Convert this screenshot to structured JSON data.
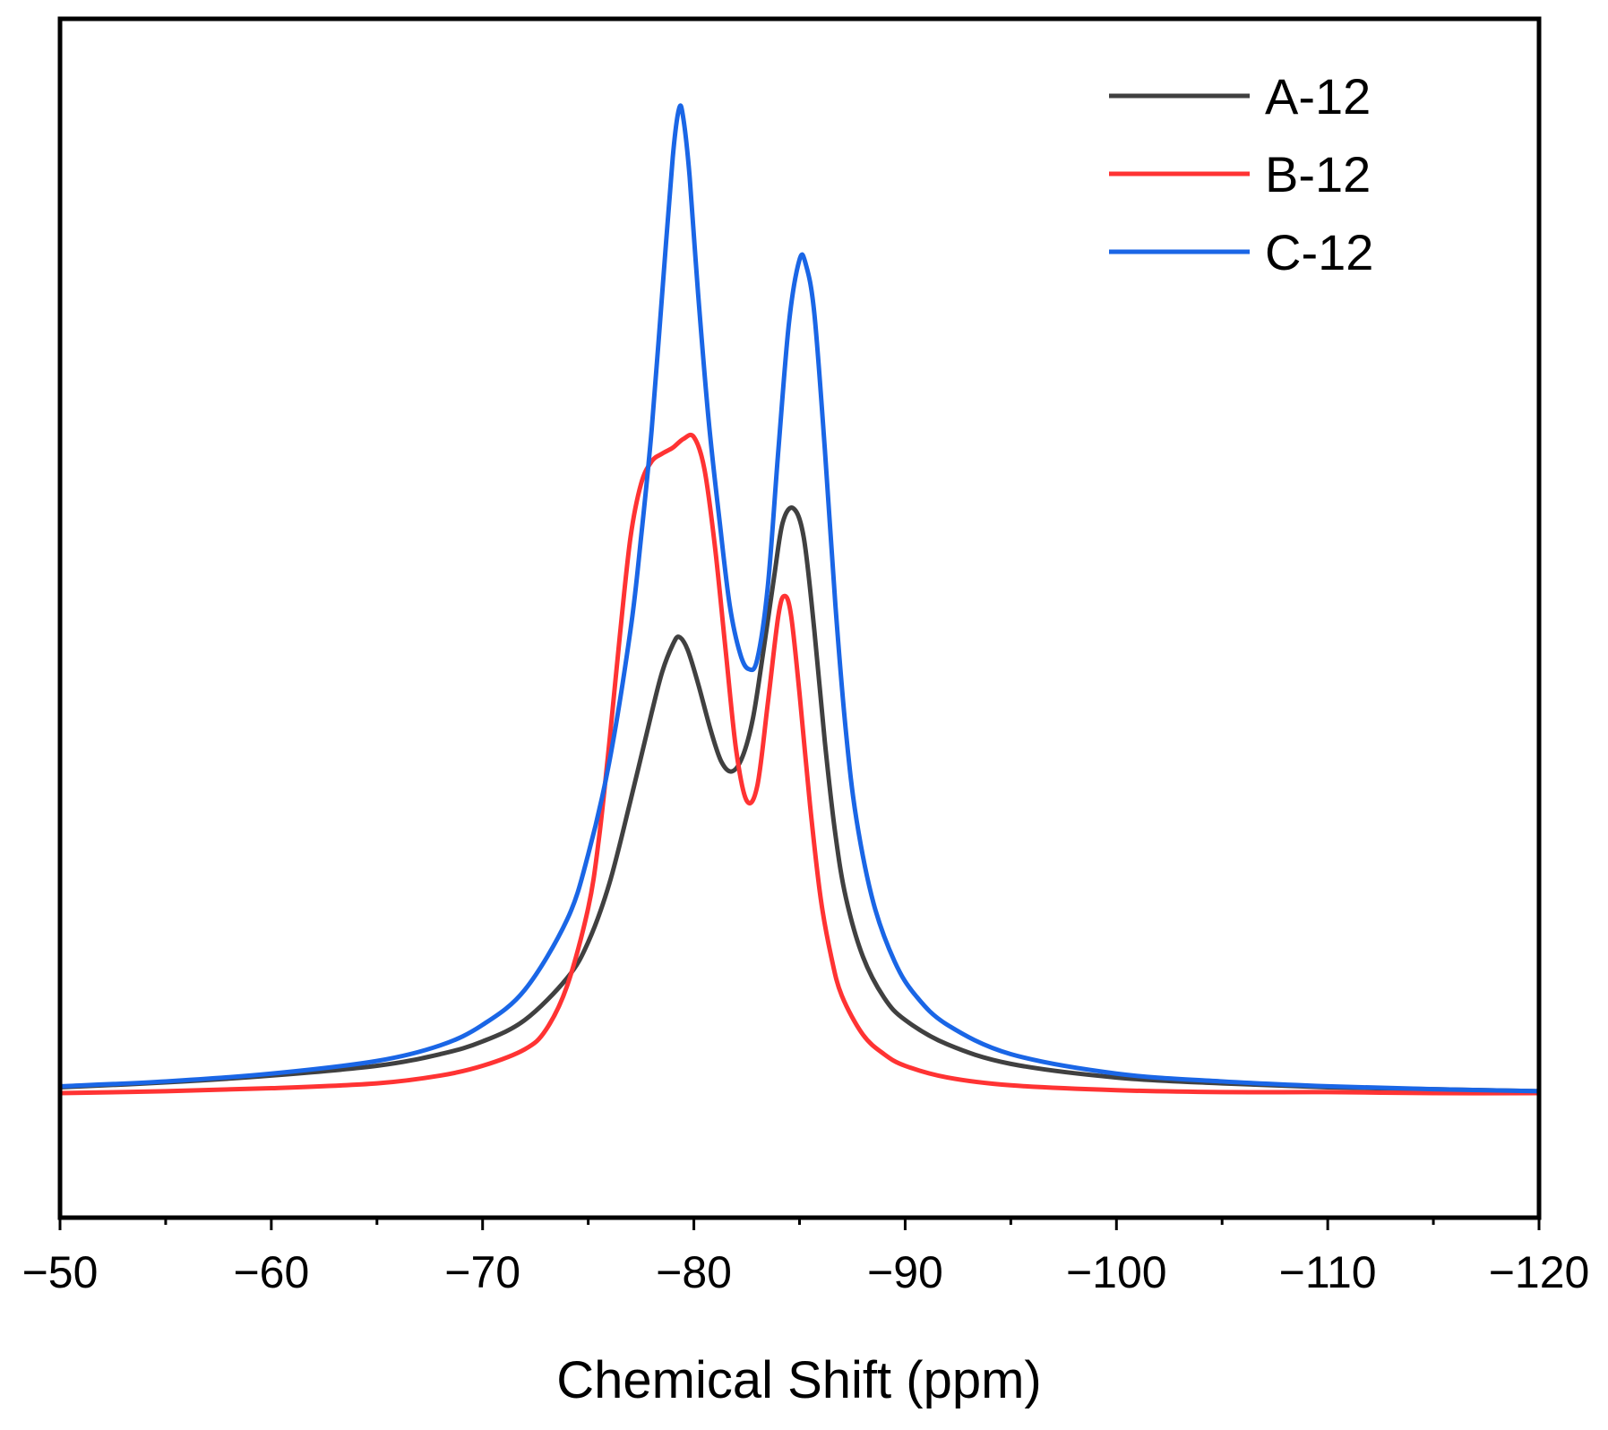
{
  "chart_data": {
    "type": "line",
    "title": "",
    "xlabel": "Chemical Shift (ppm)",
    "ylabel": "",
    "xlim": [
      -50,
      -120
    ],
    "ylim": [
      0,
      1.0
    ],
    "x_ticks": [
      -50,
      -60,
      -70,
      -80,
      -90,
      -100,
      -110,
      -120
    ],
    "x_tick_labels": [
      "−50",
      "−60",
      "−70",
      "−80",
      "−90",
      "−100",
      "−110",
      "−120"
    ],
    "y_ticks_visible": false,
    "grid": false,
    "legend_position": "top-right",
    "series": [
      {
        "name": "A-12",
        "color": "#404040",
        "x": [
          -50,
          -55,
          -60,
          -65,
          -68,
          -70,
          -72,
          -74,
          -75,
          -76,
          -77,
          -78,
          -78.5,
          -79,
          -79.3,
          -79.7,
          -80.2,
          -80.8,
          -81.3,
          -81.8,
          -82.3,
          -82.8,
          -83.3,
          -83.8,
          -84.2,
          -84.7,
          -85.2,
          -85.7,
          -86.2,
          -86.7,
          -87.2,
          -88,
          -89,
          -90,
          -92,
          -95,
          -100,
          -105,
          -110,
          -115,
          -120
        ],
        "values": [
          0.006,
          0.011,
          0.018,
          0.028,
          0.04,
          0.053,
          0.075,
          0.118,
          0.155,
          0.215,
          0.3,
          0.39,
          0.432,
          0.46,
          0.468,
          0.455,
          0.42,
          0.372,
          0.34,
          0.33,
          0.345,
          0.385,
          0.455,
          0.53,
          0.585,
          0.6,
          0.57,
          0.475,
          0.36,
          0.265,
          0.2,
          0.14,
          0.098,
          0.075,
          0.05,
          0.03,
          0.016,
          0.01,
          0.006,
          0.004,
          0.002
        ]
      },
      {
        "name": "B-12",
        "color": "#ff3333",
        "x": [
          -50,
          -55,
          -60,
          -65,
          -68,
          -70,
          -72,
          -73,
          -74,
          -75,
          -75.5,
          -76,
          -76.5,
          -77,
          -77.5,
          -78,
          -78.5,
          -79,
          -79.5,
          -80,
          -80.5,
          -81,
          -81.5,
          -82,
          -82.5,
          -83,
          -83.5,
          -84,
          -84.3,
          -84.6,
          -85,
          -85.5,
          -86,
          -86.5,
          -87,
          -88,
          -89,
          -90,
          -92,
          -95,
          -100,
          -105,
          -110,
          -115,
          -120
        ],
        "values": [
          0.0,
          0.002,
          0.005,
          0.01,
          0.018,
          0.028,
          0.045,
          0.065,
          0.11,
          0.19,
          0.26,
          0.36,
          0.47,
          0.57,
          0.625,
          0.648,
          0.656,
          0.662,
          0.671,
          0.673,
          0.64,
          0.56,
          0.455,
          0.352,
          0.3,
          0.315,
          0.4,
          0.49,
          0.51,
          0.49,
          0.41,
          0.295,
          0.2,
          0.14,
          0.1,
          0.06,
          0.04,
          0.028,
          0.016,
          0.008,
          0.003,
          0.001,
          0.001,
          0.0,
          0.0
        ]
      },
      {
        "name": "C-12",
        "color": "#1a66e6",
        "x": [
          -50,
          -55,
          -60,
          -65,
          -68,
          -70,
          -72,
          -74,
          -75,
          -76,
          -77,
          -77.5,
          -78,
          -78.5,
          -79,
          -79.3,
          -79.5,
          -79.8,
          -80.2,
          -80.7,
          -81.2,
          -81.7,
          -82.2,
          -82.6,
          -83,
          -83.5,
          -84,
          -84.5,
          -85,
          -85.3,
          -85.7,
          -86.2,
          -86.7,
          -87.2,
          -87.7,
          -88.5,
          -89.5,
          -90.5,
          -92,
          -95,
          -100,
          -105,
          -110,
          -115,
          -120
        ],
        "values": [
          0.007,
          0.012,
          0.02,
          0.033,
          0.049,
          0.07,
          0.106,
          0.178,
          0.245,
          0.34,
          0.475,
          0.57,
          0.68,
          0.82,
          0.96,
          1.01,
          1.0,
          0.94,
          0.82,
          0.69,
          0.59,
          0.5,
          0.45,
          0.435,
          0.445,
          0.52,
          0.66,
          0.79,
          0.855,
          0.85,
          0.8,
          0.66,
          0.5,
          0.37,
          0.28,
          0.195,
          0.135,
          0.1,
          0.07,
          0.04,
          0.02,
          0.012,
          0.007,
          0.004,
          0.002
        ]
      }
    ]
  }
}
